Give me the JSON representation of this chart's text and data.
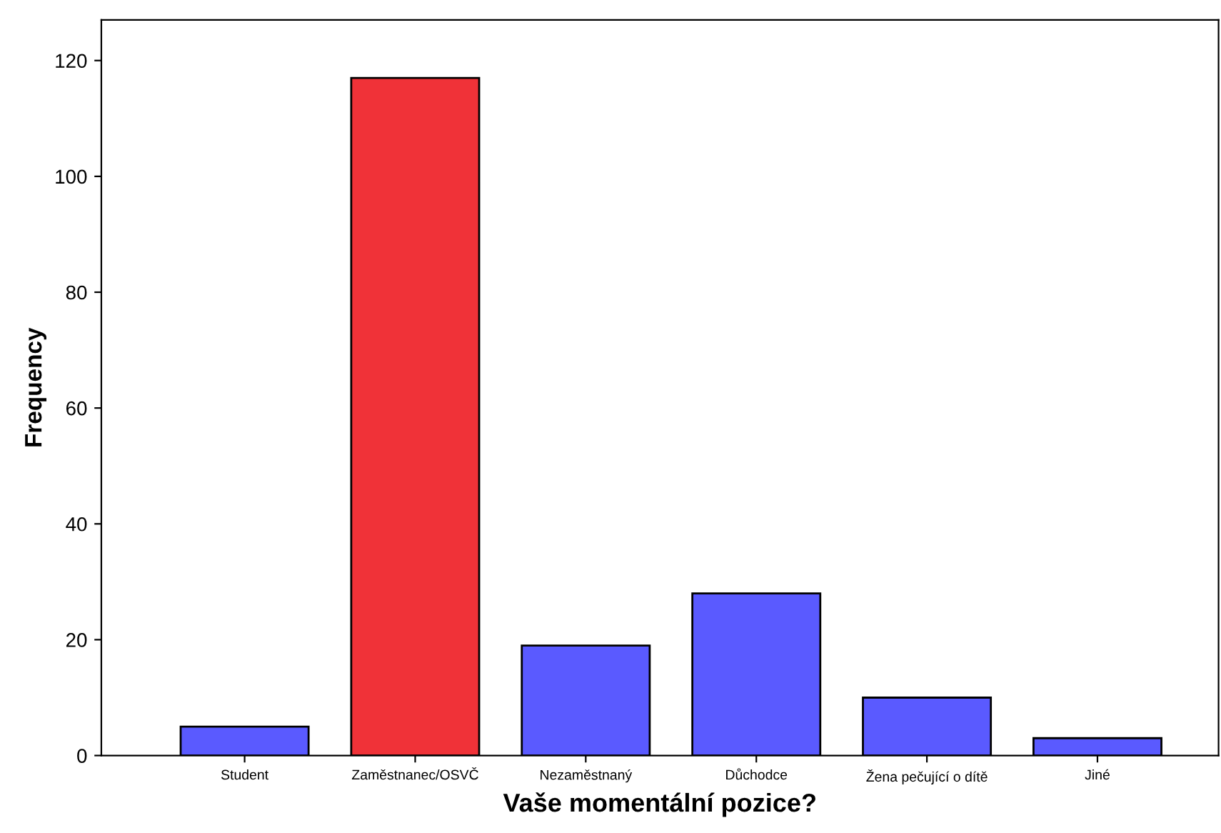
{
  "chart_data": {
    "type": "bar",
    "xlabel": "Vaše momentální pozice?",
    "ylabel": "Frequency",
    "categories": [
      "Student",
      "Zaměstnanec/OSVČ",
      "Nezaměstnaný",
      "Důchodce",
      "Žena pečující o dítě",
      "Jiné"
    ],
    "values": [
      5,
      117,
      19,
      28,
      10,
      3
    ],
    "colors": [
      "#5a5aff",
      "#f03238",
      "#5a5aff",
      "#5a5aff",
      "#5a5aff",
      "#5a5aff"
    ],
    "ylim": [
      0,
      127
    ],
    "yticks": [
      0,
      20,
      40,
      60,
      80,
      100,
      120
    ],
    "grid": false,
    "legend": false
  }
}
